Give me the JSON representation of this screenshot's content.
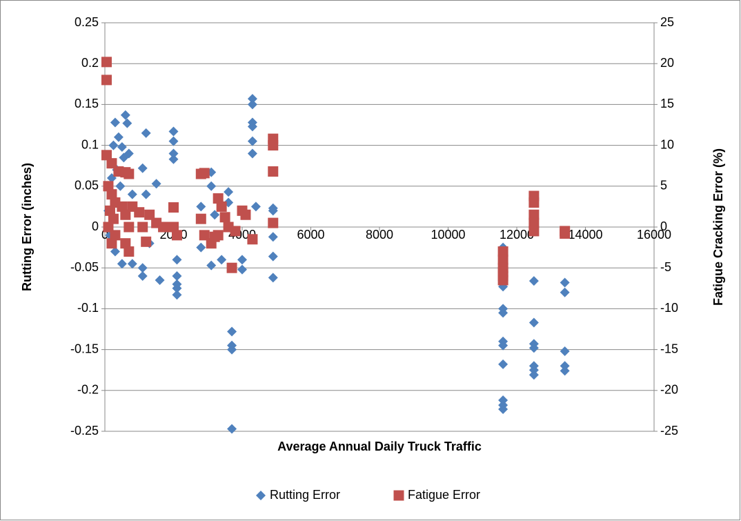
{
  "chart_data": {
    "type": "scatter",
    "xlabel": "Average Annual Daily Truck Traffic",
    "ylabel": "Rutting Error (inches)",
    "y2label": "Fatigue Cracking Error (%)",
    "xlim": [
      0,
      16000
    ],
    "xticks": [
      0,
      2000,
      4000,
      6000,
      8000,
      10000,
      12000,
      14000,
      16000
    ],
    "ylim": [
      -0.25,
      0.25
    ],
    "yticks": [
      -0.25,
      -0.2,
      -0.15,
      -0.1,
      -0.05,
      0,
      0.05,
      0.1,
      0.15,
      0.2,
      0.25
    ],
    "y2lim": [
      -25,
      25
    ],
    "y2ticks": [
      -25,
      -20,
      -15,
      -10,
      -5,
      0,
      5,
      10,
      15,
      20,
      25
    ],
    "grid": true,
    "legend": "bottom",
    "series": [
      {
        "name": "Rutting Error",
        "color": "#4f81bd",
        "marker": "diamond",
        "x": [
          300,
          400,
          250,
          500,
          600,
          650,
          700,
          550,
          350,
          200,
          450,
          800,
          100,
          150,
          300,
          500,
          800,
          1100,
          1100,
          1200,
          1100,
          1200,
          1500,
          1600,
          1300,
          2000,
          2000,
          2000,
          2000,
          2100,
          2100,
          2100,
          2100,
          2100,
          2800,
          2800,
          3100,
          3100,
          3200,
          3100,
          3400,
          3600,
          3600,
          3700,
          3700,
          3700,
          3700,
          4000,
          4000,
          4300,
          4300,
          4300,
          4300,
          4300,
          4300,
          4400,
          4900,
          4900,
          4900,
          4900,
          4900,
          11600,
          11600,
          11600,
          11600,
          11600,
          11600,
          11600,
          11600,
          11600,
          11600,
          12500,
          12500,
          12500,
          12500,
          12500,
          12500,
          12500,
          13400,
          13400,
          13400,
          13400,
          13400
        ],
        "values": [
          0.128,
          0.11,
          0.1,
          0.098,
          0.137,
          0.127,
          0.09,
          0.085,
          0.07,
          0.06,
          0.05,
          0.04,
          0.02,
          -0.01,
          -0.03,
          -0.045,
          -0.045,
          -0.05,
          -0.06,
          0.115,
          0.072,
          0.04,
          0.053,
          -0.065,
          -0.02,
          0.117,
          0.105,
          0.09,
          0.083,
          -0.04,
          -0.06,
          -0.07,
          -0.083,
          -0.075,
          0.025,
          -0.025,
          0.067,
          0.05,
          0.015,
          -0.047,
          -0.04,
          0.043,
          0.03,
          -0.128,
          -0.145,
          -0.15,
          -0.247,
          -0.04,
          -0.052,
          0.157,
          0.15,
          0.128,
          0.123,
          0.105,
          0.09,
          0.025,
          0.023,
          0.02,
          -0.012,
          -0.036,
          -0.062,
          -0.025,
          -0.073,
          -0.1,
          -0.105,
          -0.14,
          -0.145,
          -0.168,
          -0.212,
          -0.218,
          -0.223,
          -0.066,
          -0.117,
          -0.143,
          -0.148,
          -0.17,
          -0.175,
          -0.181,
          -0.068,
          -0.08,
          -0.152,
          -0.17,
          -0.176
        ]
      },
      {
        "name": "Fatigue Error",
        "color": "#c0504d",
        "marker": "square",
        "axis": "y2",
        "x": [
          50,
          50,
          50,
          200,
          100,
          200,
          300,
          150,
          250,
          100,
          300,
          200,
          400,
          500,
          600,
          700,
          600,
          700,
          600,
          700,
          800,
          1000,
          1100,
          1200,
          1300,
          1500,
          1700,
          2000,
          2000,
          2100,
          2800,
          2900,
          2800,
          2900,
          3100,
          3200,
          3300,
          3400,
          3300,
          3500,
          3600,
          3700,
          3800,
          4000,
          4100,
          4300,
          4900,
          4900,
          4900,
          4900,
          11600,
          11600,
          11600,
          11600,
          11600,
          11600,
          12500,
          12500,
          12500,
          12500,
          12500,
          13400,
          13400
        ],
        "values": [
          20.2,
          18,
          8.8,
          7.8,
          5,
          4,
          3,
          2,
          1,
          0,
          -1,
          -2,
          6.8,
          2.5,
          6.7,
          6.5,
          1.5,
          0,
          -2,
          -3,
          2.5,
          1.8,
          0,
          -1.8,
          1.5,
          0.5,
          0,
          2.4,
          0,
          -1,
          6.5,
          6.6,
          1,
          -1,
          -2,
          -1.2,
          3.5,
          2.5,
          -1,
          1.2,
          0,
          -5,
          -0.5,
          2,
          1.5,
          -1.5,
          10.8,
          10,
          6.8,
          0.5,
          -3,
          -4,
          -5,
          -5.5,
          -6,
          -6.5,
          3.8,
          3,
          1.5,
          0.5,
          -0.5,
          -0.5,
          -0.8
        ]
      }
    ]
  }
}
